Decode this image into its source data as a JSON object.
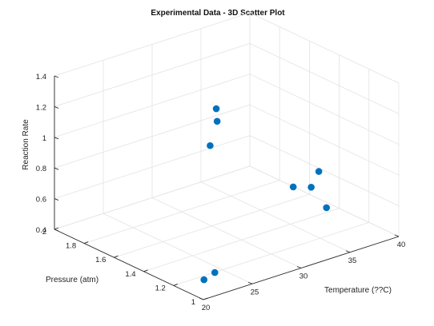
{
  "chart_data": {
    "type": "scatter",
    "title": "Experimental Data - 3D Scatter Plot",
    "xlabel": "Temperature (??C)",
    "ylabel": "Pressure (atm)",
    "zlabel": "Reaction Rate",
    "xlim": [
      20,
      40
    ],
    "ylim": [
      1,
      2
    ],
    "zlim": [
      0.4,
      1.4
    ],
    "xticks": [
      "20",
      "25",
      "30",
      "35",
      "40"
    ],
    "yticks": [
      "1",
      "1.2",
      "1.4",
      "1.6",
      "1.8",
      "2"
    ],
    "zticks": [
      "0.4",
      "0.6",
      "0.8",
      "1",
      "1.2",
      "1.4"
    ],
    "grid": true,
    "marker_color": "#0072BD",
    "points": [
      {
        "x": 22.5,
        "y": 1.16,
        "z": 0.405
      },
      {
        "x": 29.5,
        "y": 1.02,
        "z": 0.93
      },
      {
        "x": 27.2,
        "y": 1.38,
        "z": 1.24
      },
      {
        "x": 27.4,
        "y": 1.44,
        "z": 1.05
      },
      {
        "x": 26.5,
        "y": 1.34,
        "z": 1.355
      },
      {
        "x": 23.0,
        "y": 1.12,
        "z": 0.46
      },
      {
        "x": 35.0,
        "y": 1.26,
        "z": 0.705
      },
      {
        "x": 32.6,
        "y": 1.0,
        "z": 0.74
      },
      {
        "x": 37.0,
        "y": 1.34,
        "z": 0.73
      }
    ]
  }
}
